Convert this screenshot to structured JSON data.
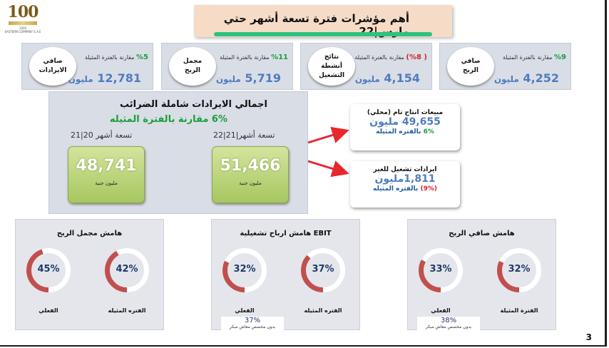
{
  "logo": {
    "mark": "100",
    "year": "1920",
    "company": "EASTERN COMPANY S.A.E"
  },
  "title": "أهم مؤشرات فترة تسعة أشهر حتي مارس|22",
  "kpis": [
    {
      "label": "صافي\nالايرادات",
      "pct": "%5",
      "pct_color": "green",
      "cmp": "مقارنة بالفترة المثيلة",
      "value": "12,781",
      "unit": "مليون"
    },
    {
      "label": "مجمل\nالربح",
      "pct": "%11",
      "pct_color": "green",
      "cmp": "مقارنة بالفترة المثيلة",
      "value": "5,719",
      "unit": "مليون"
    },
    {
      "label": "نتائج\nأنشطة\nالتشغيل",
      "pct": "( %8)",
      "pct_color": "red",
      "cmp": "مقارنة بالفترة المثيلة",
      "value": "4,154",
      "unit": "مليون"
    },
    {
      "label": "صافي\nالربح",
      "pct": "%9",
      "pct_color": "green",
      "cmp": "مقارنة بالفترة المثيلة",
      "value": "4,252",
      "unit": "مليون"
    }
  ],
  "revenue": {
    "heading": "اجمالي الايرادات شاملة الضرائب",
    "comparison": "6% مقارنة بالفترة المثيله",
    "period_current": "تسعة أشهر|21|22",
    "period_prior": "تسعة أشهر 20|21",
    "value_current": "51,466",
    "value_prior": "48,741",
    "unit": "مليون جنية"
  },
  "side_boxes": [
    {
      "title": "مبيعات انتاج تام (محلي)",
      "value": "49,655 مليون",
      "pct": "6%",
      "pct_color": "green",
      "pct_label": "بالفتره المثيله"
    },
    {
      "title": "ايرادات تشغيل للغير",
      "value": "1,811مليون",
      "pct": "(9%)",
      "pct_color": "red",
      "pct_label": "بالفتره المثيله"
    }
  ],
  "margins": [
    {
      "title": "هامش مجمل الربح",
      "actual_pct": "45%",
      "actual_value": 45,
      "actual_label": "الفعلي",
      "prior_pct": "42%",
      "prior_value": 42,
      "prior_label": "الفتره المثيله",
      "note": null
    },
    {
      "title": "EBIT هامش ارباح تشغيلية",
      "actual_pct": "32%",
      "actual_value": 32,
      "actual_label": "الفعلي",
      "prior_pct": "37%",
      "prior_value": 37,
      "prior_label": "الفتره المثيله",
      "note": {
        "pct": "37%",
        "text": "بدون مخصص معاش مبكر"
      }
    },
    {
      "title": "هامش صافي الربح",
      "actual_pct": "33%",
      "actual_value": 33,
      "actual_label": "الفعلي",
      "prior_pct": "32%",
      "prior_value": 32,
      "prior_label": "الفترة المثيلة",
      "note": {
        "pct": "38%",
        "text": "بدون مخصص معاش مبكر"
      }
    }
  ],
  "page_number": "3",
  "colors": {
    "ring": "#c0504d",
    "ring_track": "#ffffff",
    "value_blue": "#4f7cbf",
    "positive": "#1a9e3c",
    "negative": "#d0262d",
    "title_bar": "#2ec27e"
  }
}
